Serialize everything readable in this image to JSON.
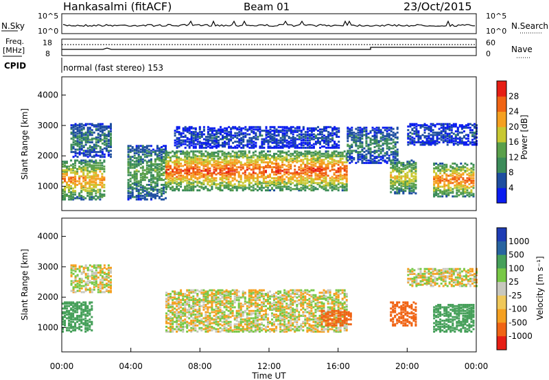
{
  "header": {
    "station": "Hankasalmi (fitACF)",
    "beam": "Beam 01",
    "date": "23/Oct/2015"
  },
  "summary": {
    "nsky_label": "N.Sky",
    "nsearch_label": "N.Search",
    "nsky_ticks": [
      "10^5",
      "10^0"
    ],
    "nsearch_ticks": [
      "10^5",
      "10^0"
    ],
    "freq_label_1": "Freq.",
    "freq_label_2": "[MHz]",
    "freq_ticks": [
      "18",
      "8"
    ],
    "nave_label": "Nave",
    "nave_ticks": [
      "60",
      "0"
    ],
    "cpid_label": "CPID",
    "cpid_text": "normal (fast stereo) 153"
  },
  "colors": {
    "power_scale": [
      "#0a1cf0",
      "#1e4ea0",
      "#3c8c5a",
      "#5aa04b",
      "#c8c832",
      "#f5a021",
      "#f06414",
      "#e61e14"
    ],
    "velocity_scale": [
      "#e61e14",
      "#f06414",
      "#f5a021",
      "#f0c85a",
      "#c8c8be",
      "#78c846",
      "#46a05a",
      "#2864a0",
      "#1e3cb4"
    ]
  },
  "chart_data": [
    {
      "type": "heatmap",
      "title": "Power",
      "ylabel": "Slant Range [km]",
      "xlabel": "Time UT",
      "ylim": [
        200,
        4600
      ],
      "yticks": [
        "1000",
        "2000",
        "3000",
        "4000"
      ],
      "colorbar_label": "Power [dB]",
      "colorbar_ticks": [
        "4",
        "8",
        "12",
        "16",
        "20",
        "24",
        "28"
      ],
      "colorbar_range": [
        0,
        32
      ],
      "regions": [
        {
          "t0": 0.0,
          "t1": 2.5,
          "r0": 600,
          "r1": 1900,
          "peak": 24
        },
        {
          "t0": 0.5,
          "t1": 2.8,
          "r0": 2000,
          "r1": 3100,
          "peak": 10
        },
        {
          "t0": 3.8,
          "t1": 6.0,
          "r0": 600,
          "r1": 2400,
          "peak": 14
        },
        {
          "t0": 6.0,
          "t1": 16.5,
          "r0": 900,
          "r1": 2200,
          "peak": 28
        },
        {
          "t0": 6.5,
          "t1": 16.0,
          "r0": 2300,
          "r1": 3000,
          "peak": 6
        },
        {
          "t0": 16.5,
          "t1": 19.5,
          "r0": 1800,
          "r1": 3000,
          "peak": 10
        },
        {
          "t0": 19.0,
          "t1": 20.5,
          "r0": 800,
          "r1": 1900,
          "peak": 20
        },
        {
          "t0": 21.5,
          "t1": 23.8,
          "r0": 700,
          "r1": 1800,
          "peak": 26
        },
        {
          "t0": 20.0,
          "t1": 24.0,
          "r0": 2400,
          "r1": 3100,
          "peak": 6
        }
      ]
    },
    {
      "type": "heatmap",
      "title": "Velocity",
      "ylabel": "Slant Range [km]",
      "xlabel": "Time UT",
      "ylim": [
        200,
        4600
      ],
      "yticks": [
        "1000",
        "2000",
        "3000",
        "4000"
      ],
      "xticks": [
        "00:00",
        "04:00",
        "08:00",
        "12:00",
        "16:00",
        "20:00",
        "00:00"
      ],
      "xrange_hours": [
        0,
        24
      ],
      "colorbar_label": "Velocity [m s⁻¹]",
      "colorbar_ticks": [
        "1000",
        "500",
        "100",
        "25",
        "-25",
        "-100",
        "-500",
        "-1000"
      ],
      "regions": [
        {
          "t0": 6.0,
          "t1": 16.5,
          "r0": 900,
          "r1": 2300,
          "vel": 0
        },
        {
          "t0": 0.5,
          "t1": 2.8,
          "r0": 2200,
          "r1": 3100,
          "vel": 0
        },
        {
          "t0": 0.0,
          "t1": 1.8,
          "r0": 900,
          "r1": 1900,
          "vel": 300
        },
        {
          "t0": 15.0,
          "t1": 16.8,
          "r0": 1100,
          "r1": 1600,
          "vel": -300
        },
        {
          "t0": 19.0,
          "t1": 20.5,
          "r0": 1100,
          "r1": 1900,
          "vel": -200
        },
        {
          "t0": 21.5,
          "t1": 23.8,
          "r0": 900,
          "r1": 1800,
          "vel": 300
        },
        {
          "t0": 20.0,
          "t1": 24.0,
          "r0": 2400,
          "r1": 3000,
          "vel": 0
        }
      ]
    }
  ]
}
